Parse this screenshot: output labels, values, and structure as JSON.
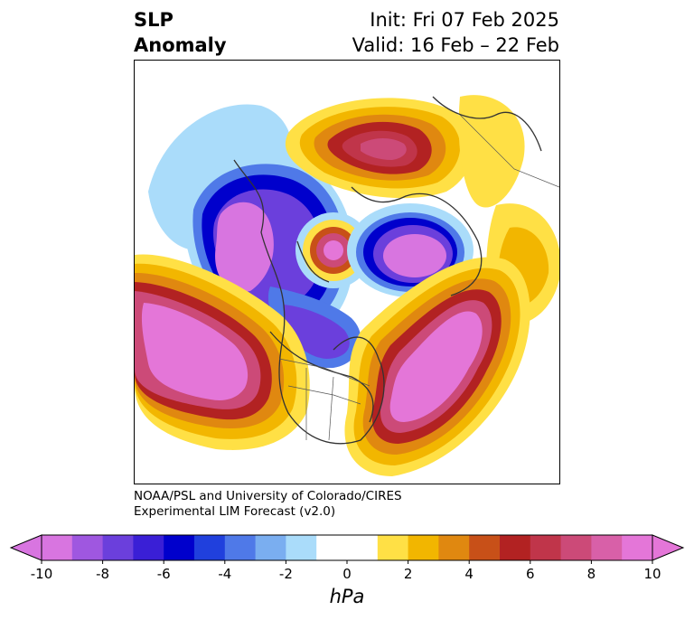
{
  "title": {
    "variable_line1": "SLP",
    "variable_line2": "Anomaly",
    "init": "Init: Fri 07 Feb 2025",
    "valid": "Valid: 16 Feb – 22 Feb"
  },
  "credit": {
    "line1": "NOAA/PSL and University of Colorado/CIRES",
    "line2": "Experimental LIM Forecast (v2.0)"
  },
  "colorbar": {
    "label": "hPa",
    "ticks": [
      "-10",
      "-8",
      "-6",
      "-4",
      "-2",
      "0",
      "2",
      "4",
      "6",
      "8",
      "10"
    ],
    "colors": [
      "#d875e0",
      "#9f57e0",
      "#6b3fdc",
      "#3a1fd6",
      "#0000cc",
      "#2040dd",
      "#4f79e8",
      "#7aaef0",
      "#aadcfa",
      "#ffffff",
      "#ffffff",
      "#ffe045",
      "#f2b600",
      "#e08810",
      "#c85018",
      "#b22222",
      "#c0354a",
      "#cc4a78",
      "#d860a8",
      "#e476d8"
    ],
    "under_color": "#d875e0",
    "over_color": "#e476d8"
  },
  "map": {
    "projection": "north-polar-stereographic",
    "features": [
      "coastlines",
      "country-borders",
      "us-state-borders"
    ]
  }
}
